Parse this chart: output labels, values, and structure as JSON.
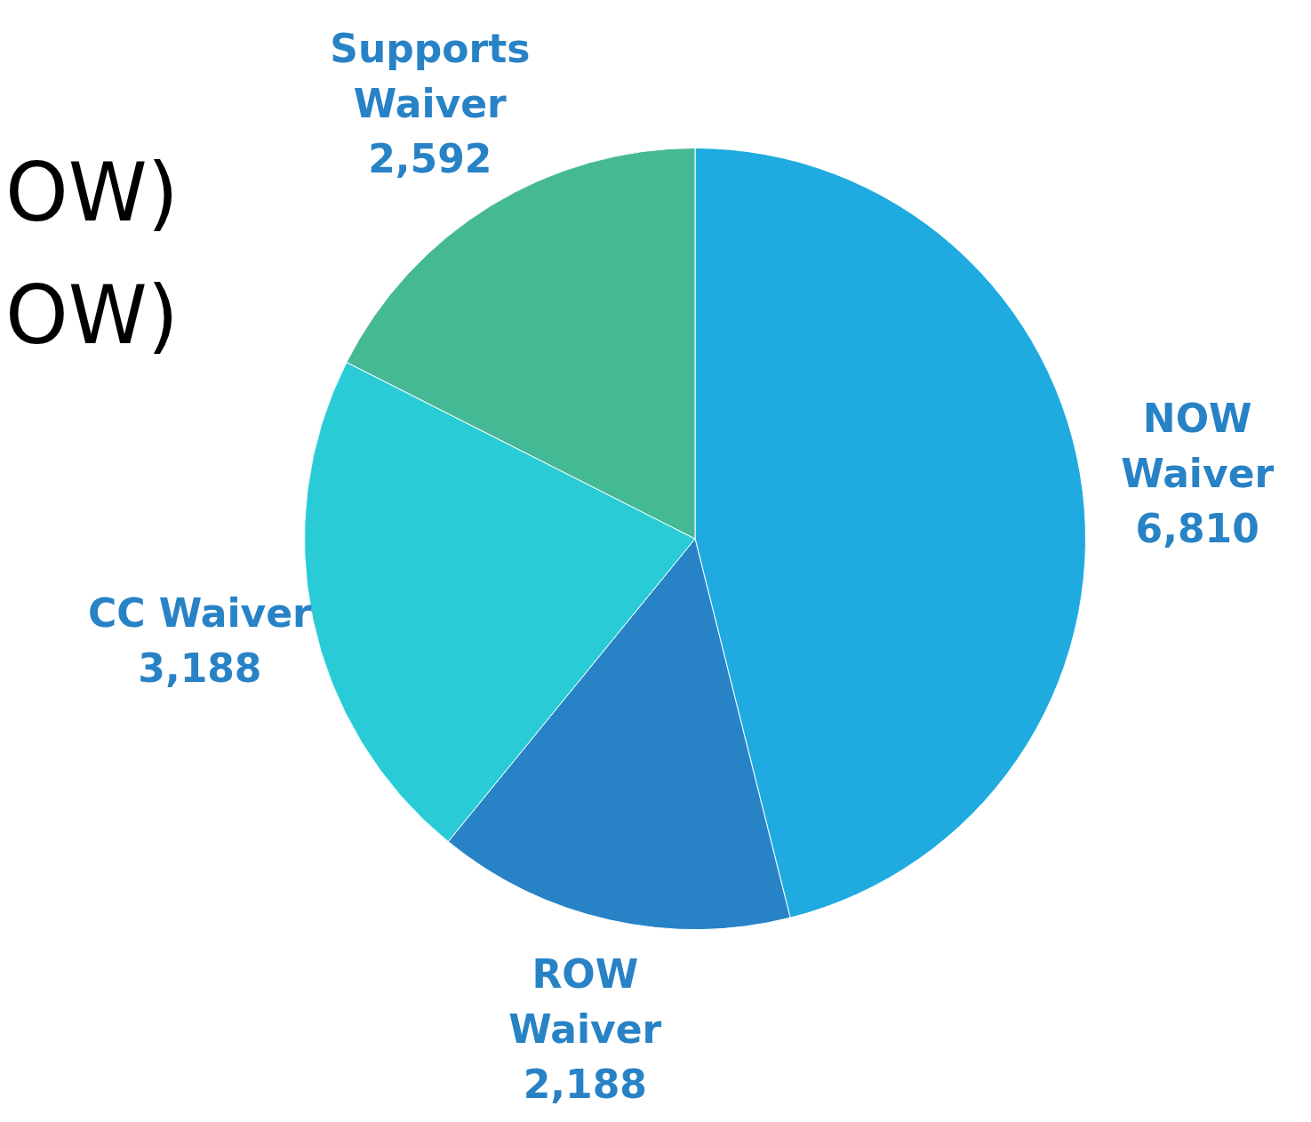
{
  "chart_data": {
    "type": "pie",
    "categories": [
      "NOW Waiver",
      "ROW Waiver",
      "CC Waiver",
      "Supports Waiver"
    ],
    "values": [
      6810,
      2188,
      3188,
      2592
    ],
    "value_labels": [
      "6,810",
      "2,188",
      "3,188",
      "2,592"
    ],
    "colors": [
      "#1fabe0",
      "#2882c6",
      "#29ccd6",
      "#44b994"
    ],
    "legend": false,
    "annotations": [
      "OW)",
      "OW)"
    ]
  }
}
